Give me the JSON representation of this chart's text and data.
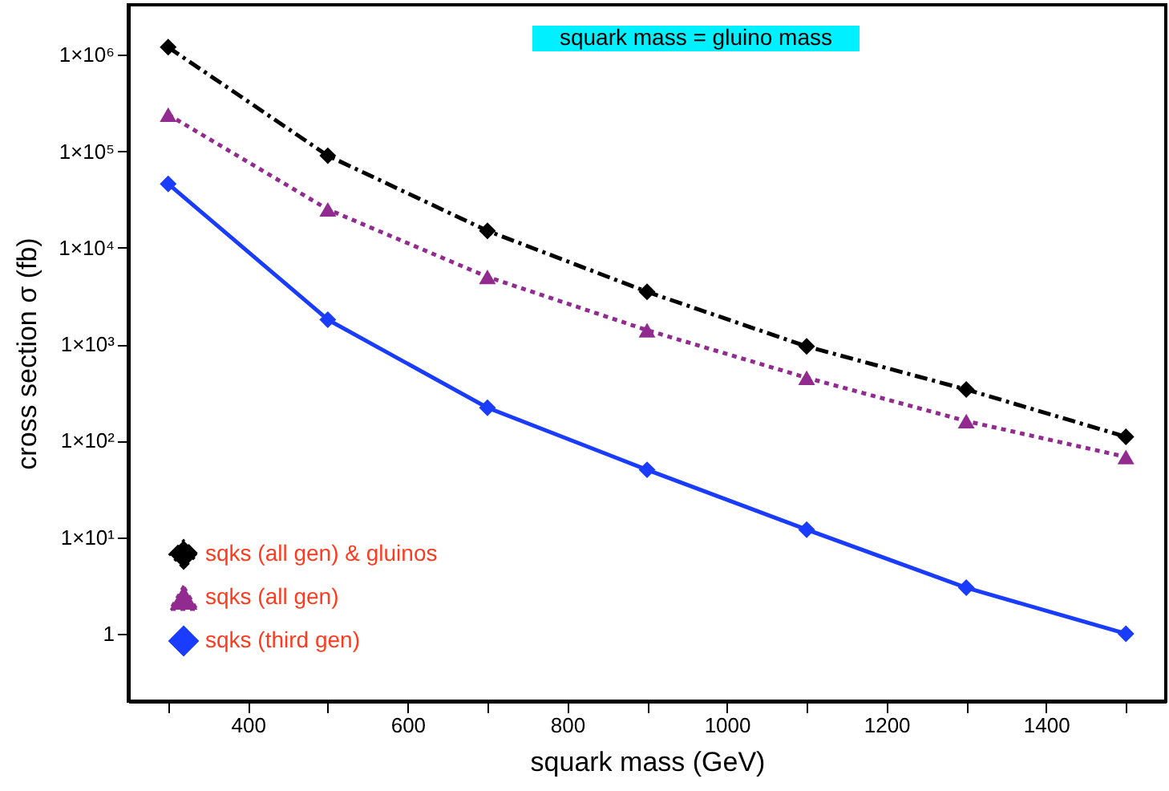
{
  "chart_data": {
    "type": "line",
    "xlabel": "squark mass  (GeV)",
    "ylabel": "cross section  σ  (fb)",
    "annotations": [
      "squark mass = gluino mass"
    ],
    "x": [
      300,
      500,
      700,
      900,
      1100,
      1300,
      1500
    ],
    "series": [
      {
        "name": "sqks (all gen) & gluinos",
        "color": "#000000",
        "line_style": "dashed",
        "marker": "diamond",
        "values": [
          1200000,
          90000,
          15000,
          3500,
          950,
          340,
          110
        ]
      },
      {
        "name": "sqks (all gen)",
        "color": "#922b8f",
        "line_style": "dotted",
        "marker": "triangle",
        "values": [
          240000,
          25000,
          5000,
          1400,
          450,
          160,
          68
        ]
      },
      {
        "name": "sqks (third gen)",
        "color": "#1a3cff",
        "line_style": "solid",
        "marker": "diamond",
        "values": [
          46000,
          1800,
          220,
          50,
          12,
          3,
          1
        ]
      }
    ],
    "log": true,
    "xlim": [
      250,
      1550
    ],
    "ylim": [
      0.2,
      3300000
    ],
    "xticks": [
      {
        "value": 300,
        "label": null
      },
      400,
      {
        "value": 500,
        "label": null
      },
      600,
      {
        "value": 700,
        "label": null
      },
      800,
      {
        "value": 900,
        "label": null
      },
      1000,
      {
        "value": 1100,
        "label": null
      },
      1200,
      {
        "value": 1300,
        "label": null
      },
      1400,
      {
        "value": 1500,
        "label": null
      }
    ],
    "yticks": [
      1,
      {
        "value": 10,
        "label": "1×10¹"
      },
      {
        "value": 100,
        "label": "1×10²"
      },
      {
        "value": 1000,
        "label": "1×10³"
      },
      {
        "value": 10000,
        "label": "1×10⁴"
      },
      {
        "value": 100000,
        "label": "1×10⁵"
      },
      {
        "value": 1000000,
        "label": "1×10⁶"
      }
    ],
    "legend": "bottom left",
    "grid": false
  }
}
